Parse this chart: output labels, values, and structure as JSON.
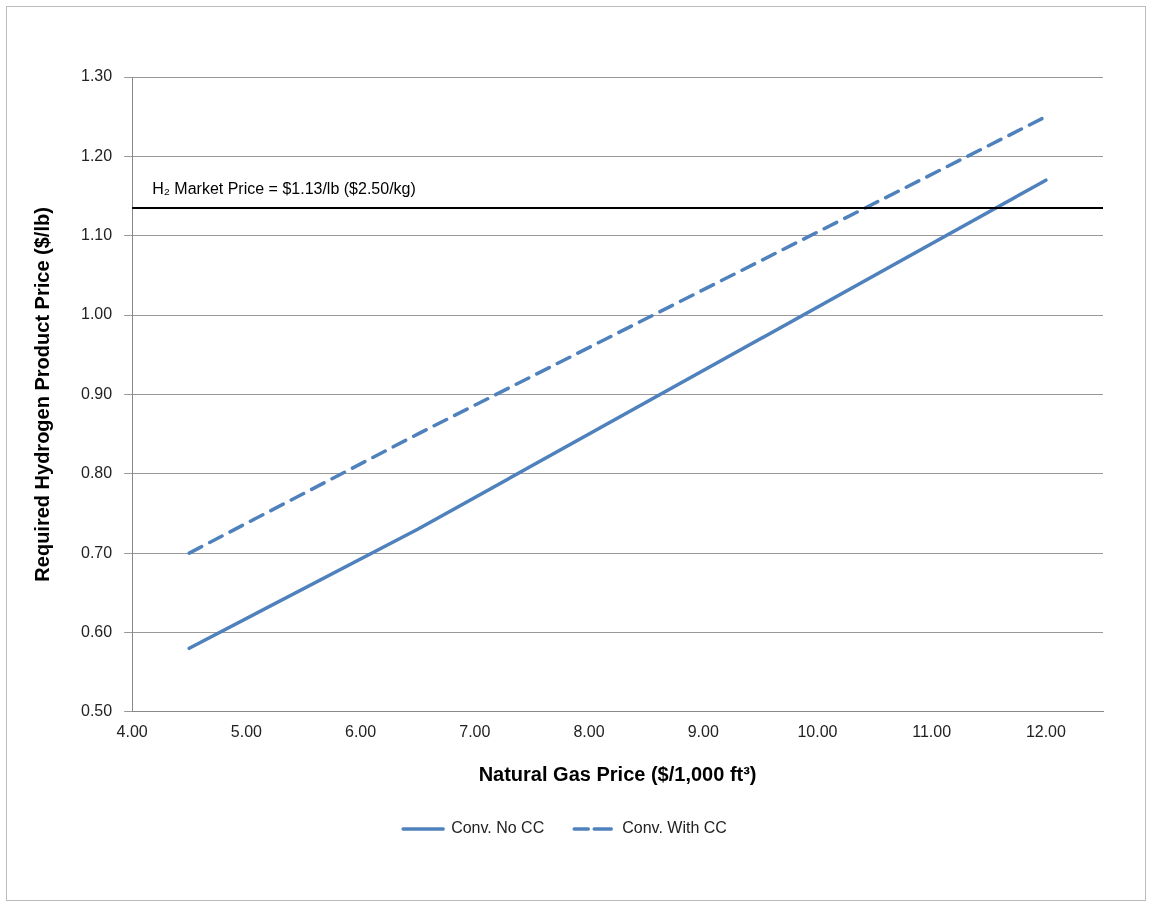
{
  "chart_data": {
    "type": "line",
    "xlabel": "Natural Gas Price ($/1,000 ft³)",
    "ylabel": "Required Hydrogen Product Price ($/lb)",
    "series": [
      {
        "name": "Conv. No CC",
        "color": "#4f81bd",
        "line_style": "solid",
        "x": [
          4.5,
          6.5,
          12
        ],
        "values": [
          0.58,
          0.73,
          1.17
        ]
      },
      {
        "name": "Conv. With CC",
        "color": "#4f81bd",
        "line_style": "dashed",
        "x": [
          4.5,
          6.5,
          12
        ],
        "values": [
          0.7,
          0.85,
          1.25
        ]
      }
    ],
    "xlim": [
      4,
      12.5
    ],
    "xticks": [
      {
        "value": 4,
        "label": "4.00"
      },
      {
        "value": 5,
        "label": "5.00"
      },
      {
        "value": 6,
        "label": "6.00"
      },
      {
        "value": 7,
        "label": "7.00"
      },
      {
        "value": 8,
        "label": "8.00"
      },
      {
        "value": 9,
        "label": "9.00"
      },
      {
        "value": 10,
        "label": "10.00"
      },
      {
        "value": 11,
        "label": "11.00"
      },
      {
        "value": 12,
        "label": "12.00"
      }
    ],
    "ylim": [
      0.5,
      1.3
    ],
    "yticks": [
      {
        "value": 0.5,
        "label": "0.50"
      },
      {
        "value": 0.6,
        "label": "0.60"
      },
      {
        "value": 0.7,
        "label": "0.70"
      },
      {
        "value": 0.8,
        "label": "0.80"
      },
      {
        "value": 0.9,
        "label": "0.90"
      },
      {
        "value": 1.0,
        "label": "1.00"
      },
      {
        "value": 1.1,
        "label": "1.10"
      },
      {
        "value": 1.2,
        "label": "1.20"
      },
      {
        "value": 1.3,
        "label": "1.30"
      }
    ],
    "ref_lines": [
      {
        "axis": "y",
        "value": 1.135,
        "label": "H₂ Market Price = $1.13/lb ($2.50/kg)",
        "color": "#000000"
      }
    ],
    "grid": "y",
    "legend": "bottom",
    "marker": "none"
  }
}
